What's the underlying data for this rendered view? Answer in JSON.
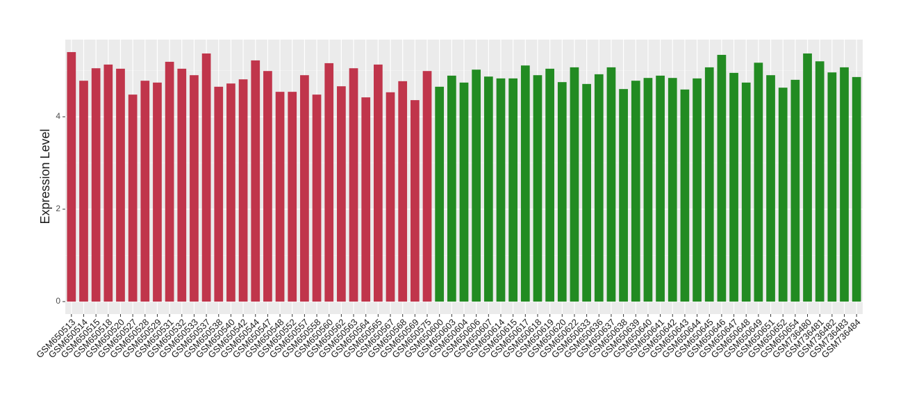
{
  "chart_data": {
    "type": "bar",
    "y_label": "Expression Level",
    "categories": [
      "GSM650513",
      "GSM650514",
      "GSM650515",
      "GSM650518",
      "GSM650520",
      "GSM650527",
      "GSM650528",
      "GSM650529",
      "GSM650531",
      "GSM650532",
      "GSM650533",
      "GSM650537",
      "GSM650538",
      "GSM650540",
      "GSM650542",
      "GSM650544",
      "GSM650547",
      "GSM650548",
      "GSM650552",
      "GSM650557",
      "GSM650558",
      "GSM650560",
      "GSM650562",
      "GSM650563",
      "GSM650564",
      "GSM650565",
      "GSM650567",
      "GSM650568",
      "GSM650569",
      "GSM650575",
      "GSM650600",
      "GSM650603",
      "GSM650604",
      "GSM650606",
      "GSM650607",
      "GSM650614",
      "GSM650615",
      "GSM650617",
      "GSM650618",
      "GSM650619",
      "GSM650620",
      "GSM650622",
      "GSM650633",
      "GSM650636",
      "GSM650637",
      "GSM650638",
      "GSM650639",
      "GSM650640",
      "GSM650641",
      "GSM650642",
      "GSM650643",
      "GSM650644",
      "GSM650645",
      "GSM650646",
      "GSM650647",
      "GSM650648",
      "GSM650649",
      "GSM650651",
      "GSM650652",
      "GSM650654",
      "GSM736480",
      "GSM736481",
      "GSM736482",
      "GSM736483",
      "GSM736484"
    ],
    "values": [
      5.4,
      4.78,
      5.05,
      5.13,
      5.04,
      4.48,
      4.78,
      4.74,
      5.19,
      5.04,
      4.9,
      5.37,
      4.65,
      4.72,
      4.81,
      5.22,
      4.99,
      4.54,
      4.54,
      4.9,
      4.48,
      5.16,
      4.66,
      5.05,
      4.42,
      5.13,
      4.53,
      4.77,
      4.36,
      4.99,
      4.65,
      4.89,
      4.74,
      5.02,
      4.87,
      4.83,
      4.83,
      5.11,
      4.9,
      5.04,
      4.75,
      5.07,
      4.71,
      4.92,
      5.07,
      4.6,
      4.78,
      4.84,
      4.89,
      4.84,
      4.59,
      4.83,
      5.07,
      5.34,
      4.95,
      4.74,
      5.17,
      4.9,
      4.63,
      4.8,
      5.37,
      5.2,
      4.96,
      5.07,
      4.86
    ],
    "colors": [
      "#c0354b",
      "#c0354b",
      "#c0354b",
      "#c0354b",
      "#c0354b",
      "#c0354b",
      "#c0354b",
      "#c0354b",
      "#c0354b",
      "#c0354b",
      "#c0354b",
      "#c0354b",
      "#c0354b",
      "#c0354b",
      "#c0354b",
      "#c0354b",
      "#c0354b",
      "#c0354b",
      "#c0354b",
      "#c0354b",
      "#c0354b",
      "#c0354b",
      "#c0354b",
      "#c0354b",
      "#c0354b",
      "#c0354b",
      "#c0354b",
      "#c0354b",
      "#c0354b",
      "#c0354b",
      "#228b22",
      "#228b22",
      "#228b22",
      "#228b22",
      "#228b22",
      "#228b22",
      "#228b22",
      "#228b22",
      "#228b22",
      "#228b22",
      "#228b22",
      "#228b22",
      "#228b22",
      "#228b22",
      "#228b22",
      "#228b22",
      "#228b22",
      "#228b22",
      "#228b22",
      "#228b22",
      "#228b22",
      "#228b22",
      "#228b22",
      "#228b22",
      "#228b22",
      "#228b22",
      "#228b22",
      "#228b22",
      "#228b22",
      "#228b22",
      "#228b22",
      "#228b22",
      "#228b22",
      "#228b22",
      "#228b22"
    ],
    "ylim": [
      -0.27,
      5.67
    ],
    "yticks": [
      0,
      2,
      4
    ],
    "grid": true
  }
}
